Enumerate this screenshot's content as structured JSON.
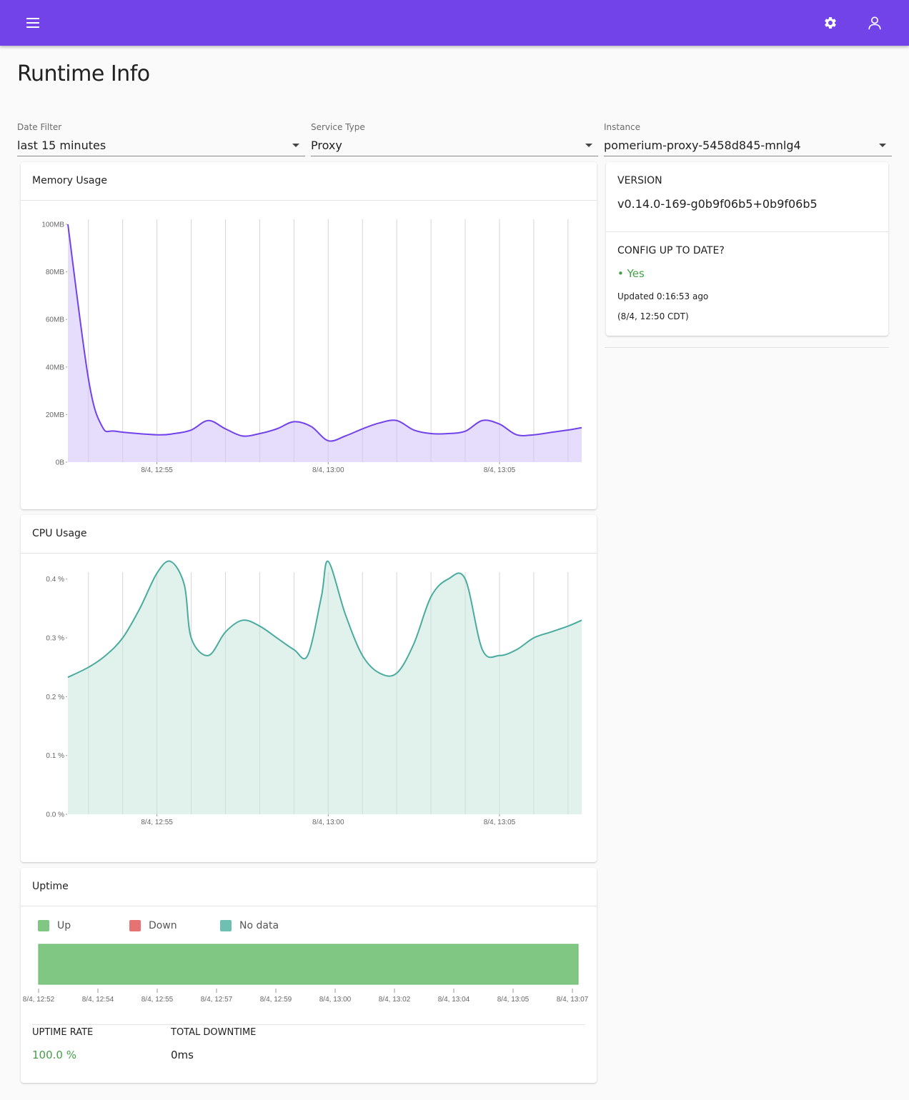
{
  "appbar": {
    "menu_icon": "menu-icon",
    "settings_icon": "gear-icon",
    "account_icon": "user-icon",
    "color": "#7143e9"
  },
  "page": {
    "title": "Runtime Info"
  },
  "filters": {
    "date": {
      "label": "Date Filter",
      "value": "last 15 minutes"
    },
    "service": {
      "label": "Service Type",
      "value": "Proxy"
    },
    "instance": {
      "label": "Instance",
      "value": "pomerium-proxy-5458d845-mnlg4"
    }
  },
  "info": {
    "version_label": "VERSION",
    "version_value": "v0.14.0-169-g0b9f06b5+0b9f06b5",
    "config_label": "CONFIG UP TO DATE?",
    "config_status": "• Yes",
    "config_status_color": "#43a047",
    "updated_text": "Updated 0:16:53 ago",
    "updated_time": "(8/4, 12:50 CDT)"
  },
  "memory": {
    "title": "Memory Usage",
    "chart_data": {
      "type": "area",
      "y_tick_labels": [
        "0B",
        "20MB",
        "40MB",
        "60MB",
        "80MB",
        "100MB"
      ],
      "ylim": [
        0,
        100
      ],
      "y_unit": "MB",
      "x_tick_labels": [
        "8/4, 12:55",
        "8/4, 13:00",
        "8/4, 13:05"
      ],
      "xlim_minutes": [
        -2.6,
        12.4
      ],
      "x_tick_minutes": [
        0,
        5,
        10
      ],
      "series": [
        {
          "color": "#7143e9",
          "fill": "#e0d7fa",
          "x_minutes": [
            -2.6,
            -2.0,
            -1.6,
            -1.2,
            0.0,
            0.5,
            1.0,
            1.5,
            2.0,
            2.5,
            3.0,
            3.5,
            4.0,
            4.5,
            5.0,
            5.5,
            6.0,
            6.5,
            7.0,
            7.5,
            8.0,
            8.5,
            9.0,
            9.5,
            10.0,
            10.5,
            11.0,
            11.5,
            12.0,
            12.4
          ],
          "y_values": [
            100,
            35,
            15,
            13,
            11.5,
            12,
            13.5,
            17.5,
            14,
            11,
            12,
            14,
            17,
            15,
            9,
            11,
            14,
            16.5,
            17.5,
            13.5,
            12,
            12,
            13,
            17.5,
            16,
            11.5,
            11.5,
            12.5,
            13.5,
            14.5
          ]
        }
      ]
    }
  },
  "cpu": {
    "title": "CPU Usage",
    "chart_data": {
      "type": "area",
      "y_tick_labels": [
        "0.0 %",
        "0.1 %",
        "0.2 %",
        "0.3 %",
        "0.4 %"
      ],
      "ylim": [
        0,
        0.43
      ],
      "y_unit": "%",
      "x_tick_labels": [
        "8/4, 12:55",
        "8/4, 13:00",
        "8/4, 13:05"
      ],
      "xlim_minutes": [
        -2.6,
        12.4
      ],
      "x_tick_minutes": [
        0,
        5,
        10
      ],
      "series": [
        {
          "color": "#4aab9f",
          "fill": "#dceee9",
          "x_minutes": [
            -2.6,
            -2.0,
            -1.5,
            -1.0,
            -0.5,
            0.0,
            0.4,
            0.8,
            1.0,
            1.5,
            2.0,
            2.5,
            3.0,
            3.5,
            4.0,
            4.4,
            4.8,
            5.0,
            5.5,
            6.0,
            6.5,
            7.0,
            7.5,
            8.0,
            8.5,
            9.0,
            9.5,
            10.0,
            10.5,
            11.0,
            11.5,
            12.0,
            12.4
          ],
          "y_values": [
            0.233,
            0.25,
            0.27,
            0.3,
            0.35,
            0.41,
            0.43,
            0.39,
            0.3,
            0.27,
            0.31,
            0.33,
            0.32,
            0.3,
            0.28,
            0.27,
            0.37,
            0.43,
            0.34,
            0.27,
            0.24,
            0.24,
            0.29,
            0.37,
            0.4,
            0.4,
            0.28,
            0.27,
            0.28,
            0.3,
            0.31,
            0.32,
            0.33
          ]
        }
      ]
    }
  },
  "uptime": {
    "title": "Uptime",
    "legend": [
      {
        "label": "Up",
        "color": "#81c784"
      },
      {
        "label": "Down",
        "color": "#e57373"
      },
      {
        "label": "No data",
        "color": "#6fbfb3"
      }
    ],
    "chart_data": {
      "type": "bar",
      "status": "Up",
      "x_tick_labels": [
        "8/4, 12:52",
        "8/4, 12:54",
        "8/4, 12:55",
        "8/4, 12:57",
        "8/4, 12:59",
        "8/4, 13:00",
        "8/4, 13:02",
        "8/4, 13:04",
        "8/4, 13:05",
        "8/4, 13:07"
      ]
    },
    "rate_label": "UPTIME RATE",
    "rate_value": "100.0 %",
    "rate_color": "#43a047",
    "downtime_label": "TOTAL DOWNTIME",
    "downtime_value": "0ms"
  }
}
